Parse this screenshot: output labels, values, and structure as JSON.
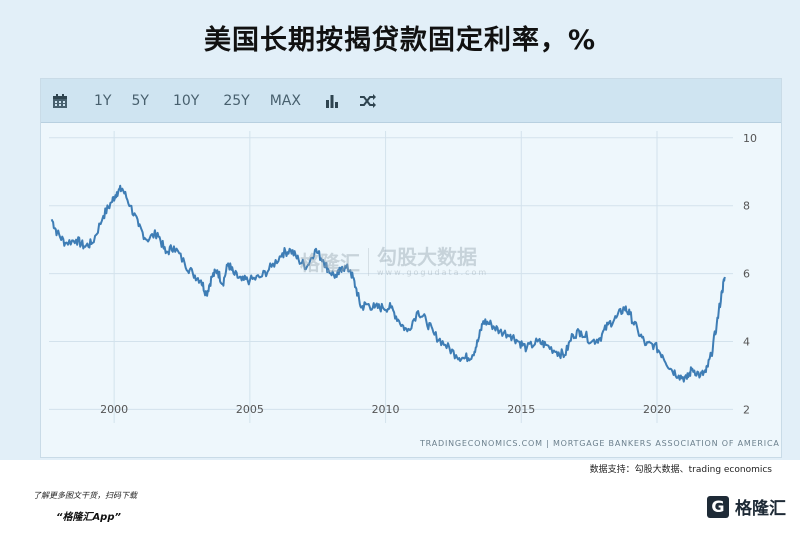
{
  "title": "美国长期按揭贷款固定利率，%",
  "toolbar": {
    "calendar_icon": "calendar-icon",
    "ranges": [
      "1Y",
      "5Y",
      "10Y",
      "25Y",
      "MAX"
    ],
    "bar_icon": "bar-chart-icon",
    "shuffle_icon": "shuffle-icon"
  },
  "watermark": {
    "left": "格隆汇",
    "right": "勾股大数据",
    "url": "www.gogudata.com"
  },
  "credit": "TRADINGECONOMICS.COM  |  MORTGAGE BANKERS ASSOCIATION OF AMERICA",
  "footer": {
    "data_support": "数据支持：勾股大数据、trading economics",
    "promo_line1": "了解更多图文干货，扫码下载",
    "promo_line2": "“格隆汇App”",
    "brand_mark": "G",
    "brand_name": "格隆汇"
  },
  "chart_data": {
    "type": "line",
    "title": "美国长期按揭贷款固定利率，%",
    "xlabel": "",
    "ylabel": "",
    "x_ticks": [
      2000,
      2005,
      2010,
      2015,
      2020
    ],
    "y_ticks": [
      2,
      4,
      6,
      8,
      10
    ],
    "xlim": [
      1997.6,
      2022.8
    ],
    "ylim": [
      1.6,
      10.2
    ],
    "grid": true,
    "line_color": "#3e7db5",
    "x": [
      1997.7,
      1997.9,
      1998.2,
      1998.6,
      1998.9,
      1999.2,
      1999.6,
      1999.9,
      2000.1,
      2000.3,
      2000.6,
      2000.9,
      2001.2,
      2001.6,
      2001.9,
      2002.2,
      2002.6,
      2002.9,
      2003.2,
      2003.4,
      2003.6,
      2003.8,
      2004.0,
      2004.2,
      2004.4,
      2004.7,
      2005.0,
      2005.4,
      2005.8,
      2006.2,
      2006.5,
      2006.8,
      2007.1,
      2007.4,
      2007.7,
      2007.9,
      2008.2,
      2008.4,
      2008.7,
      2008.9,
      2009.1,
      2009.3,
      2009.6,
      2009.9,
      2010.2,
      2010.5,
      2010.8,
      2011.2,
      2011.5,
      2011.8,
      2012.2,
      2012.6,
      2012.9,
      2013.2,
      2013.4,
      2013.6,
      2013.9,
      2014.2,
      2014.6,
      2014.9,
      2015.2,
      2015.6,
      2015.9,
      2016.3,
      2016.6,
      2016.9,
      2017.2,
      2017.6,
      2017.9,
      2018.2,
      2018.5,
      2018.8,
      2019.0,
      2019.3,
      2019.6,
      2019.9,
      2020.2,
      2020.5,
      2020.8,
      2021.1,
      2021.3,
      2021.6,
      2021.8,
      2022.0,
      2022.2,
      2022.4,
      2022.5
    ],
    "values": [
      7.6,
      7.2,
      6.9,
      7.0,
      6.8,
      6.9,
      7.7,
      8.1,
      8.4,
      8.5,
      8.0,
      7.4,
      7.0,
      7.2,
      6.6,
      6.8,
      6.3,
      6.0,
      5.8,
      5.4,
      5.9,
      6.1,
      5.7,
      6.3,
      6.0,
      5.8,
      5.8,
      5.9,
      6.2,
      6.6,
      6.7,
      6.4,
      6.2,
      6.7,
      6.4,
      6.1,
      5.9,
      6.2,
      6.1,
      5.6,
      5.0,
      5.1,
      5.0,
      5.0,
      5.0,
      4.6,
      4.3,
      4.9,
      4.6,
      4.2,
      3.9,
      3.6,
      3.5,
      3.6,
      4.0,
      4.6,
      4.5,
      4.3,
      4.2,
      4.0,
      3.8,
      4.0,
      3.9,
      3.7,
      3.6,
      4.2,
      4.3,
      4.0,
      4.1,
      4.5,
      4.7,
      5.0,
      4.8,
      4.3,
      3.9,
      3.9,
      3.6,
      3.2,
      3.0,
      2.9,
      3.2,
      3.0,
      3.1,
      3.6,
      4.5,
      5.5,
      5.9
    ]
  }
}
